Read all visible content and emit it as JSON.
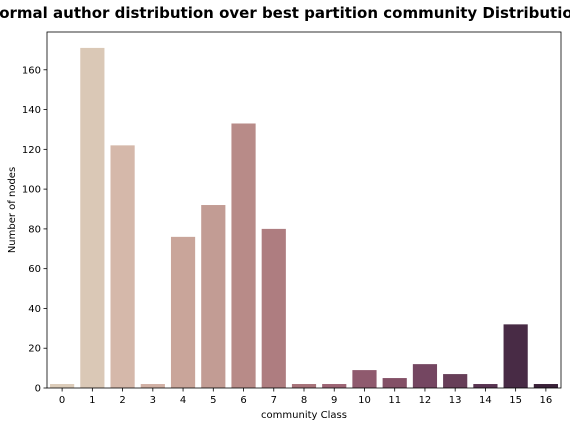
{
  "chart_data": {
    "type": "bar",
    "title": "Normal author distribution over best partition community Distribution",
    "xlabel": "community Class",
    "ylabel": "Number of nodes",
    "categories": [
      "0",
      "1",
      "2",
      "3",
      "4",
      "5",
      "6",
      "7",
      "8",
      "9",
      "10",
      "11",
      "12",
      "13",
      "14",
      "15",
      "16"
    ],
    "values": [
      2,
      171,
      122,
      2,
      76,
      92,
      133,
      80,
      2,
      2,
      9,
      5,
      12,
      7,
      2,
      32,
      2
    ],
    "ylim": [
      0,
      179
    ],
    "yticks": [
      0,
      20,
      40,
      60,
      80,
      100,
      120,
      140,
      160
    ],
    "grid": false,
    "colors": [
      "#dcccb9",
      "#dac8b6",
      "#d5b8aa",
      "#d1b0a4",
      "#c9a59a",
      "#c29c94",
      "#b88b88",
      "#ae7d80",
      "#a77279",
      "#9d6474",
      "#8f5a6e",
      "#835066",
      "#744661",
      "#673e58",
      "#593452",
      "#482b45",
      "#3a2138"
    ]
  }
}
